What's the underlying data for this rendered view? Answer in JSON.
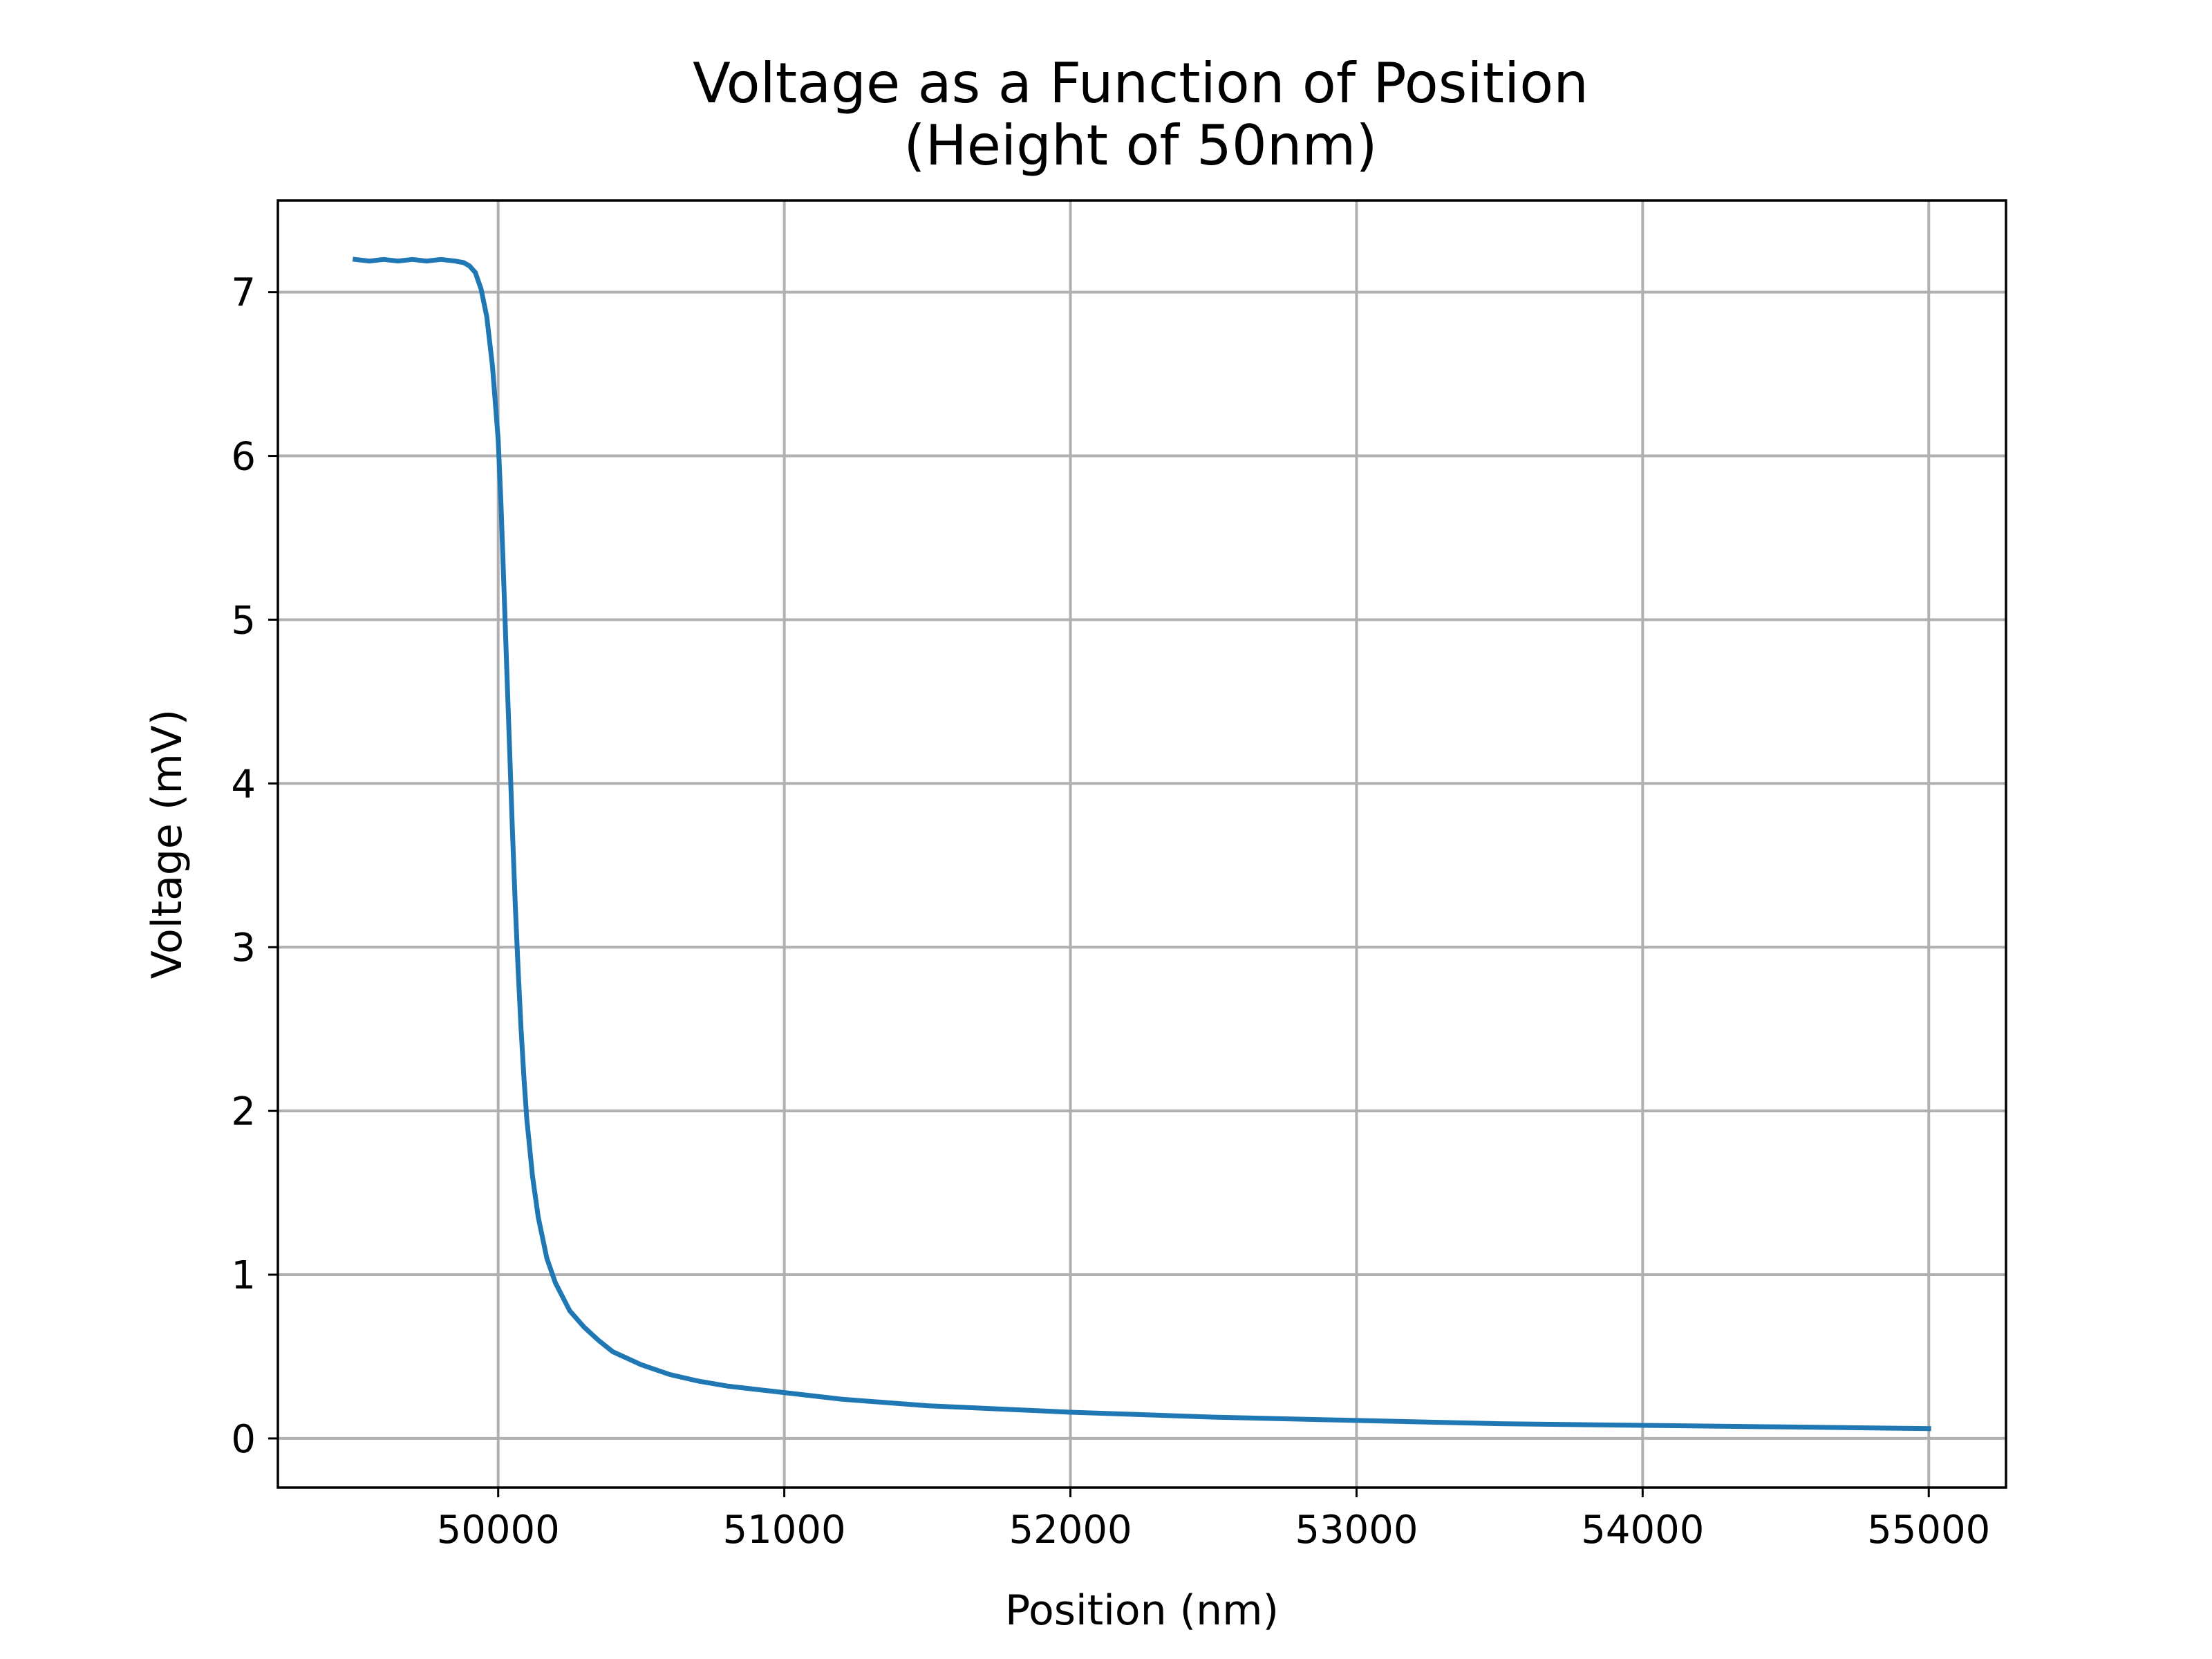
{
  "chart_data": {
    "type": "line",
    "title_line1": "Voltage as a Function of Position",
    "title_line2": "(Height of 50nm)",
    "xlabel": "Position (nm)",
    "ylabel": "Voltage (mV)",
    "xlim": [
      49230,
      55270
    ],
    "ylim": [
      -0.3,
      7.56
    ],
    "xticks": [
      50000,
      51000,
      52000,
      53000,
      54000,
      55000
    ],
    "yticks": [
      0,
      1,
      2,
      3,
      4,
      5,
      6,
      7
    ],
    "grid": true,
    "line_color": "#1f77b4",
    "series": [
      {
        "x": [
          49500,
          49550,
          49600,
          49650,
          49700,
          49750,
          49800,
          49850,
          49880,
          49900,
          49920,
          49940,
          49960,
          49980,
          50000,
          50010,
          50020,
          50030,
          50040,
          50050,
          50060,
          50070,
          50080,
          50090,
          50100,
          50120,
          50140,
          50170,
          50200,
          50250,
          50300,
          50350,
          50400,
          50500,
          50600,
          50700,
          50800,
          51000,
          51200,
          51500,
          52000,
          52500,
          53000,
          53500,
          54000,
          54500,
          55000
        ],
        "y": [
          7.2,
          7.19,
          7.2,
          7.19,
          7.2,
          7.19,
          7.2,
          7.19,
          7.18,
          7.16,
          7.12,
          7.02,
          6.85,
          6.55,
          6.1,
          5.7,
          5.2,
          4.7,
          4.2,
          3.7,
          3.25,
          2.85,
          2.5,
          2.2,
          1.95,
          1.6,
          1.35,
          1.1,
          0.95,
          0.78,
          0.68,
          0.6,
          0.53,
          0.45,
          0.39,
          0.35,
          0.32,
          0.28,
          0.24,
          0.2,
          0.16,
          0.13,
          0.11,
          0.09,
          0.08,
          0.07,
          0.06
        ]
      }
    ]
  }
}
